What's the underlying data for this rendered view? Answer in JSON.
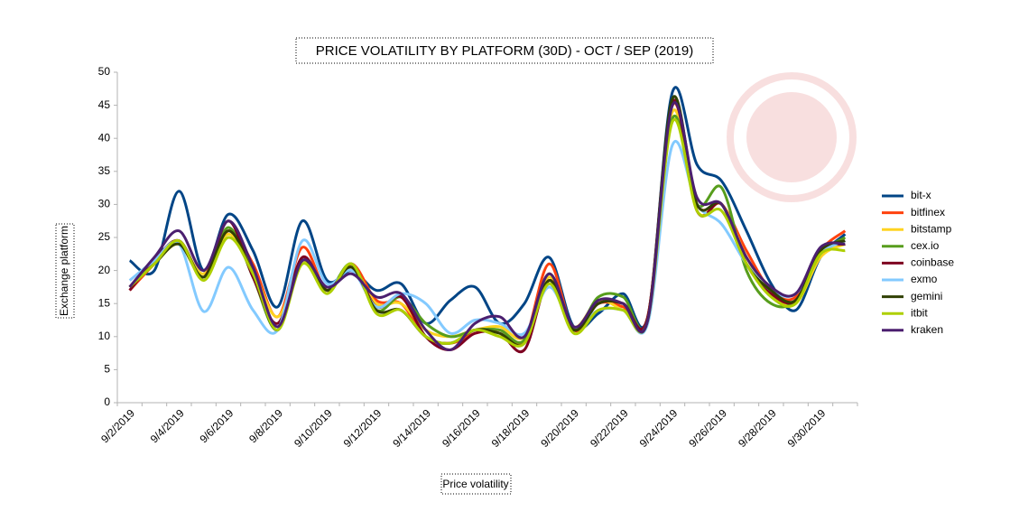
{
  "chart_data": {
    "type": "line",
    "title": "PRICE VOLATILITY BY PLATFORM (30D) - OCT / SEP (2019)",
    "x_label": "Price volatility",
    "y_label": "Exchange platform",
    "categories": [
      "9/2/2019",
      null,
      "9/4/2019",
      null,
      "9/6/2019",
      null,
      "9/8/2019",
      null,
      "9/10/2019",
      null,
      "9/12/2019",
      null,
      "9/14/2019",
      null,
      "9/16/2019",
      null,
      "9/18/2019",
      null,
      "9/20/2019",
      null,
      "9/22/2019",
      null,
      "9/24/2019",
      null,
      "9/26/2019",
      null,
      "9/28/2019",
      null,
      "9/30/2019",
      null
    ],
    "ylim": [
      0,
      50
    ],
    "yticks": [
      0,
      5,
      10,
      15,
      20,
      25,
      30,
      35,
      40,
      45,
      50
    ],
    "grid": false,
    "legend": "right",
    "smooth": true,
    "series": [
      {
        "name": "bit-x",
        "color": "#004586",
        "values": [
          21.5,
          20,
          32,
          20,
          28.5,
          23,
          14.5,
          27.5,
          18.5,
          20,
          17,
          18,
          12,
          15.5,
          17.5,
          12,
          15,
          22,
          11.5,
          13.5,
          16.5,
          13,
          47,
          36,
          33.5,
          26,
          18,
          14,
          22,
          25.5
        ]
      },
      {
        "name": "bitfinex",
        "color": "#ff420e",
        "values": [
          17,
          21,
          24.5,
          19,
          26,
          21,
          13,
          23.5,
          17,
          21,
          15.5,
          15,
          10,
          9,
          10.5,
          11,
          9.5,
          21,
          11,
          15,
          14.5,
          13,
          45,
          30,
          30,
          23,
          17,
          16,
          23,
          26
        ]
      },
      {
        "name": "bitstamp",
        "color": "#ffd320",
        "values": [
          17.5,
          21,
          24,
          19.5,
          25.5,
          20,
          13,
          21.5,
          17,
          20.5,
          15,
          15,
          11,
          10,
          11,
          11.5,
          10,
          19,
          11.5,
          15.5,
          14,
          13,
          44,
          29,
          30,
          22,
          16.5,
          15,
          22,
          24
        ]
      },
      {
        "name": "cex.io",
        "color": "#579d1c",
        "values": [
          17.5,
          21,
          24.5,
          19,
          26.5,
          19,
          11,
          21.5,
          17,
          21,
          14,
          16,
          12,
          10,
          11,
          11,
          9.5,
          19.5,
          11,
          16,
          16,
          12.5,
          43,
          30,
          32.5,
          20,
          15,
          15.5,
          22.5,
          25
        ]
      },
      {
        "name": "coinbase",
        "color": "#7e0021",
        "values": [
          17,
          21.5,
          24.5,
          19,
          27.5,
          19,
          12,
          22,
          17,
          20.5,
          14.5,
          16,
          10,
          8,
          10.5,
          10.5,
          8,
          18.5,
          11,
          15,
          15,
          13,
          45.5,
          29,
          30,
          21,
          16.5,
          15.5,
          23,
          24
        ]
      },
      {
        "name": "exmo",
        "color": "#83caff",
        "values": [
          18.5,
          21.5,
          24,
          13.8,
          20.5,
          14,
          11,
          24.5,
          18,
          20,
          14.5,
          16.5,
          15,
          10.5,
          12.5,
          12,
          10.5,
          17.5,
          11.5,
          14,
          14,
          12,
          39,
          30,
          27,
          21,
          17,
          16.5,
          22.5,
          24.5
        ]
      },
      {
        "name": "gemini",
        "color": "#314004",
        "values": [
          17.5,
          21,
          24,
          19,
          26,
          19.5,
          11,
          21.5,
          17,
          20.5,
          14,
          14,
          10,
          9,
          11,
          10.5,
          9,
          18.5,
          11,
          15,
          15,
          12.5,
          46,
          30,
          30,
          21,
          17,
          15.5,
          23,
          24.5
        ]
      },
      {
        "name": "itbit",
        "color": "#aecf00",
        "values": [
          17.5,
          21,
          24.5,
          18.5,
          25,
          19.5,
          11,
          21,
          16.5,
          21,
          13.5,
          14,
          10,
          9,
          11,
          10,
          9,
          18,
          10.5,
          14,
          14,
          12.5,
          42.5,
          29,
          29,
          21,
          16,
          15,
          22.5,
          23
        ]
      },
      {
        "name": "kraken",
        "color": "#4b1f6f",
        "values": [
          17.5,
          22,
          26,
          20,
          27.5,
          20.5,
          11.5,
          21.5,
          17.5,
          19.5,
          16,
          16.5,
          11,
          8,
          12,
          13,
          10,
          19.5,
          11.5,
          15.5,
          15,
          12.5,
          45,
          31,
          30,
          22,
          17.5,
          16.5,
          23.5,
          24
        ]
      }
    ]
  }
}
